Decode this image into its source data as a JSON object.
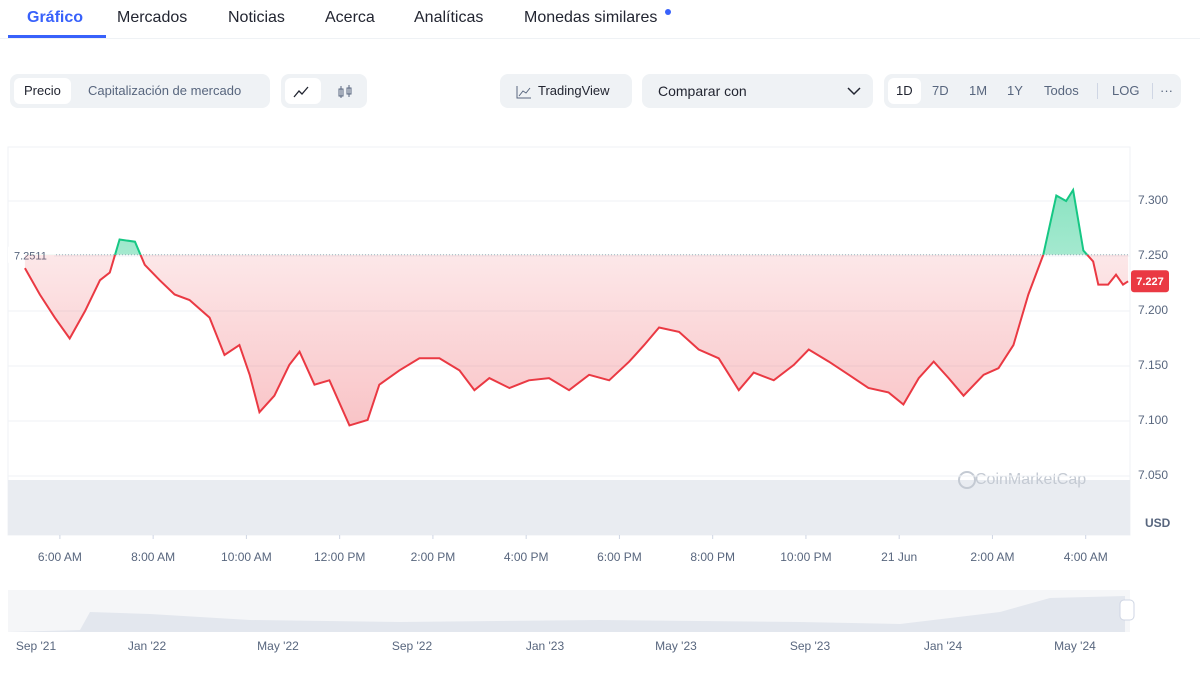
{
  "tabs": [
    "Gráfico",
    "Mercados",
    "Noticias",
    "Acerca",
    "Analíticas",
    "Monedas similares"
  ],
  "controls": {
    "price": "Precio",
    "market_cap": "Capitalización de mercado",
    "tradingview": "TradingView",
    "compare": "Comparar con",
    "ranges": [
      "1D",
      "7D",
      "1M",
      "1Y",
      "Todos"
    ],
    "log": "LOG",
    "more": "···"
  },
  "chart_data": {
    "type": "line",
    "watermark": "CoinMarketCap",
    "unit": "USD",
    "reference_value": 7.2511,
    "current_value": 7.227,
    "colors": {
      "up": "#16c784",
      "down": "#ea3943"
    },
    "x": [
      5.25,
      5.57,
      5.89,
      6.21,
      6.54,
      6.86,
      7.07,
      7.28,
      7.61,
      7.82,
      8.14,
      8.46,
      8.78,
      9.21,
      9.53,
      9.85,
      10.07,
      10.28,
      10.6,
      10.92,
      11.14,
      11.46,
      11.78,
      12.21,
      12.6,
      12.85,
      13.28,
      13.71,
      14.14,
      14.57,
      14.89,
      15.21,
      15.64,
      16.06,
      16.49,
      16.92,
      17.35,
      17.78,
      18.21,
      18.53,
      18.85,
      19.28,
      19.7,
      20.13,
      20.56,
      20.88,
      21.31,
      21.74,
      22.06,
      22.49,
      22.92,
      23.34,
      23.77,
      24.09,
      24.42,
      24.74,
      25.06,
      25.38,
      25.81,
      26.13,
      26.45,
      26.77,
      27.09,
      27.37,
      27.58,
      27.73,
      27.95,
      28.16,
      28.27,
      28.48,
      28.65,
      28.8,
      28.91
    ],
    "series": [
      {
        "name": "Precio",
        "values": [
          7.239,
          7.215,
          7.194,
          7.175,
          7.2,
          7.228,
          7.235,
          7.265,
          7.263,
          7.242,
          7.228,
          7.215,
          7.21,
          7.194,
          7.16,
          7.169,
          7.142,
          7.108,
          7.123,
          7.151,
          7.163,
          7.133,
          7.137,
          7.096,
          7.101,
          7.133,
          7.146,
          7.157,
          7.157,
          7.146,
          7.128,
          7.139,
          7.13,
          7.137,
          7.139,
          7.128,
          7.142,
          7.137,
          7.154,
          7.169,
          7.185,
          7.181,
          7.165,
          7.157,
          7.128,
          7.144,
          7.137,
          7.151,
          7.165,
          7.154,
          7.142,
          7.13,
          7.126,
          7.115,
          7.139,
          7.154,
          7.139,
          7.123,
          7.142,
          7.148,
          7.169,
          7.215,
          7.251,
          7.305,
          7.3,
          7.31,
          7.255,
          7.245,
          7.224,
          7.224,
          7.233,
          7.224,
          7.227
        ]
      }
    ],
    "xlim": [
      4.93,
      28.95
    ],
    "xticks": [
      {
        "value": 6,
        "label": "6:00 AM"
      },
      {
        "value": 8,
        "label": "8:00 AM"
      },
      {
        "value": 10,
        "label": "10:00 AM"
      },
      {
        "value": 12,
        "label": "12:00 PM"
      },
      {
        "value": 14,
        "label": "2:00 PM"
      },
      {
        "value": 16,
        "label": "4:00 PM"
      },
      {
        "value": 18,
        "label": "6:00 PM"
      },
      {
        "value": 20,
        "label": "8:00 PM"
      },
      {
        "value": 22,
        "label": "10:00 PM"
      },
      {
        "value": 24,
        "label": "21 Jun"
      },
      {
        "value": 26,
        "label": "2:00 AM"
      },
      {
        "value": 28,
        "label": "4:00 AM"
      }
    ],
    "ylim": [
      7.0,
      7.35
    ],
    "yticks": [
      {
        "value": 7.05,
        "label": "7.050"
      },
      {
        "value": 7.1,
        "label": "7.100"
      },
      {
        "value": 7.15,
        "label": "7.150"
      },
      {
        "value": 7.2,
        "label": "7.200"
      },
      {
        "value": 7.25,
        "label": "7.250"
      },
      {
        "value": 7.3,
        "label": "7.300"
      }
    ],
    "grid": true
  },
  "navigator": {
    "labels": [
      "Sep '21",
      "Jan '22",
      "May '22",
      "Sep '22",
      "Jan '23",
      "May '23",
      "Sep '23",
      "Jan '24",
      "May '24"
    ]
  }
}
